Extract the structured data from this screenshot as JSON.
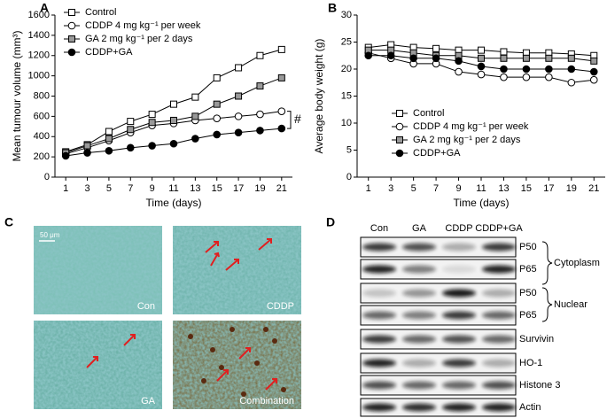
{
  "chart_data": [
    {
      "type": "line",
      "panel": "A",
      "x_label": "Time (days)",
      "y_label": "Mean tumour volume (mm³)",
      "x": [
        1,
        3,
        5,
        7,
        9,
        11,
        13,
        15,
        17,
        19,
        21
      ],
      "xlim": [
        0,
        22
      ],
      "xticks": [
        1,
        3,
        5,
        7,
        9,
        11,
        13,
        15,
        17,
        19,
        21
      ],
      "ylim": [
        0,
        1600
      ],
      "yticks": [
        0,
        200,
        400,
        600,
        800,
        1000,
        1200,
        1400,
        1600
      ],
      "legend": "upper left",
      "annotation": "#",
      "series": [
        {
          "name": "Control",
          "marker": "square",
          "color": "#ffffff",
          "values": [
            250,
            320,
            450,
            550,
            620,
            720,
            790,
            980,
            1080,
            1200,
            1260
          ]
        },
        {
          "name": "CDDP 4 mg kg⁻¹ per week",
          "marker": "circle",
          "color": "#ffffff",
          "values": [
            230,
            290,
            360,
            440,
            510,
            530,
            560,
            580,
            600,
            620,
            650
          ]
        },
        {
          "name": "GA 2 mg kg⁻¹ per 2 days",
          "marker": "square",
          "color": "#999999",
          "values": [
            240,
            310,
            380,
            470,
            540,
            560,
            600,
            720,
            800,
            900,
            980
          ]
        },
        {
          "name": "CDDP+GA",
          "marker": "circle",
          "color": "#000000",
          "values": [
            210,
            240,
            260,
            290,
            310,
            330,
            380,
            420,
            440,
            460,
            480
          ]
        }
      ]
    },
    {
      "type": "line",
      "panel": "B",
      "x_label": "Time (days)",
      "y_label": "Average body weight (g)",
      "x": [
        1,
        3,
        5,
        7,
        9,
        11,
        13,
        15,
        17,
        19,
        21
      ],
      "xlim": [
        0,
        22
      ],
      "xticks": [
        1,
        3,
        5,
        7,
        9,
        11,
        13,
        15,
        17,
        19,
        21
      ],
      "ylim": [
        0,
        30
      ],
      "yticks": [
        0,
        5,
        10,
        15,
        20,
        25,
        30
      ],
      "legend": "lower left",
      "series": [
        {
          "name": "Control",
          "marker": "square",
          "color": "#ffffff",
          "values": [
            24,
            24.5,
            24,
            23.8,
            23.5,
            23.5,
            23.2,
            23,
            23,
            22.8,
            22.5
          ]
        },
        {
          "name": "CDDP 4 mg kg⁻¹ per week",
          "marker": "circle",
          "color": "#ffffff",
          "values": [
            23,
            22,
            21,
            21,
            19.5,
            19,
            18.5,
            18.5,
            18.5,
            17.5,
            18
          ]
        },
        {
          "name": "GA 2 mg kg⁻¹ per 2 days",
          "marker": "square",
          "color": "#999999",
          "values": [
            23.5,
            23.5,
            23,
            22.5,
            22.5,
            22,
            22,
            22,
            22,
            22,
            21.5
          ]
        },
        {
          "name": "CDDP+GA",
          "marker": "circle",
          "color": "#000000",
          "values": [
            22.5,
            22.5,
            22,
            22,
            21.5,
            20.5,
            20,
            20,
            20,
            20,
            19.5
          ]
        }
      ]
    }
  ],
  "panel_c": {
    "panel": "C",
    "scale_bar": "50 μm",
    "images": [
      "Con",
      "CDDP",
      "GA",
      "Combination"
    ]
  },
  "panel_d": {
    "panel": "D",
    "columns": [
      "Con",
      "GA",
      "CDDP",
      "CDDP+GA"
    ],
    "rows": [
      "P50",
      "P65",
      "P50",
      "P65",
      "Survivin",
      "HO-1",
      "Histone 3",
      "Actin"
    ],
    "groups": [
      "Cytoplasm",
      "Nuclear"
    ]
  }
}
